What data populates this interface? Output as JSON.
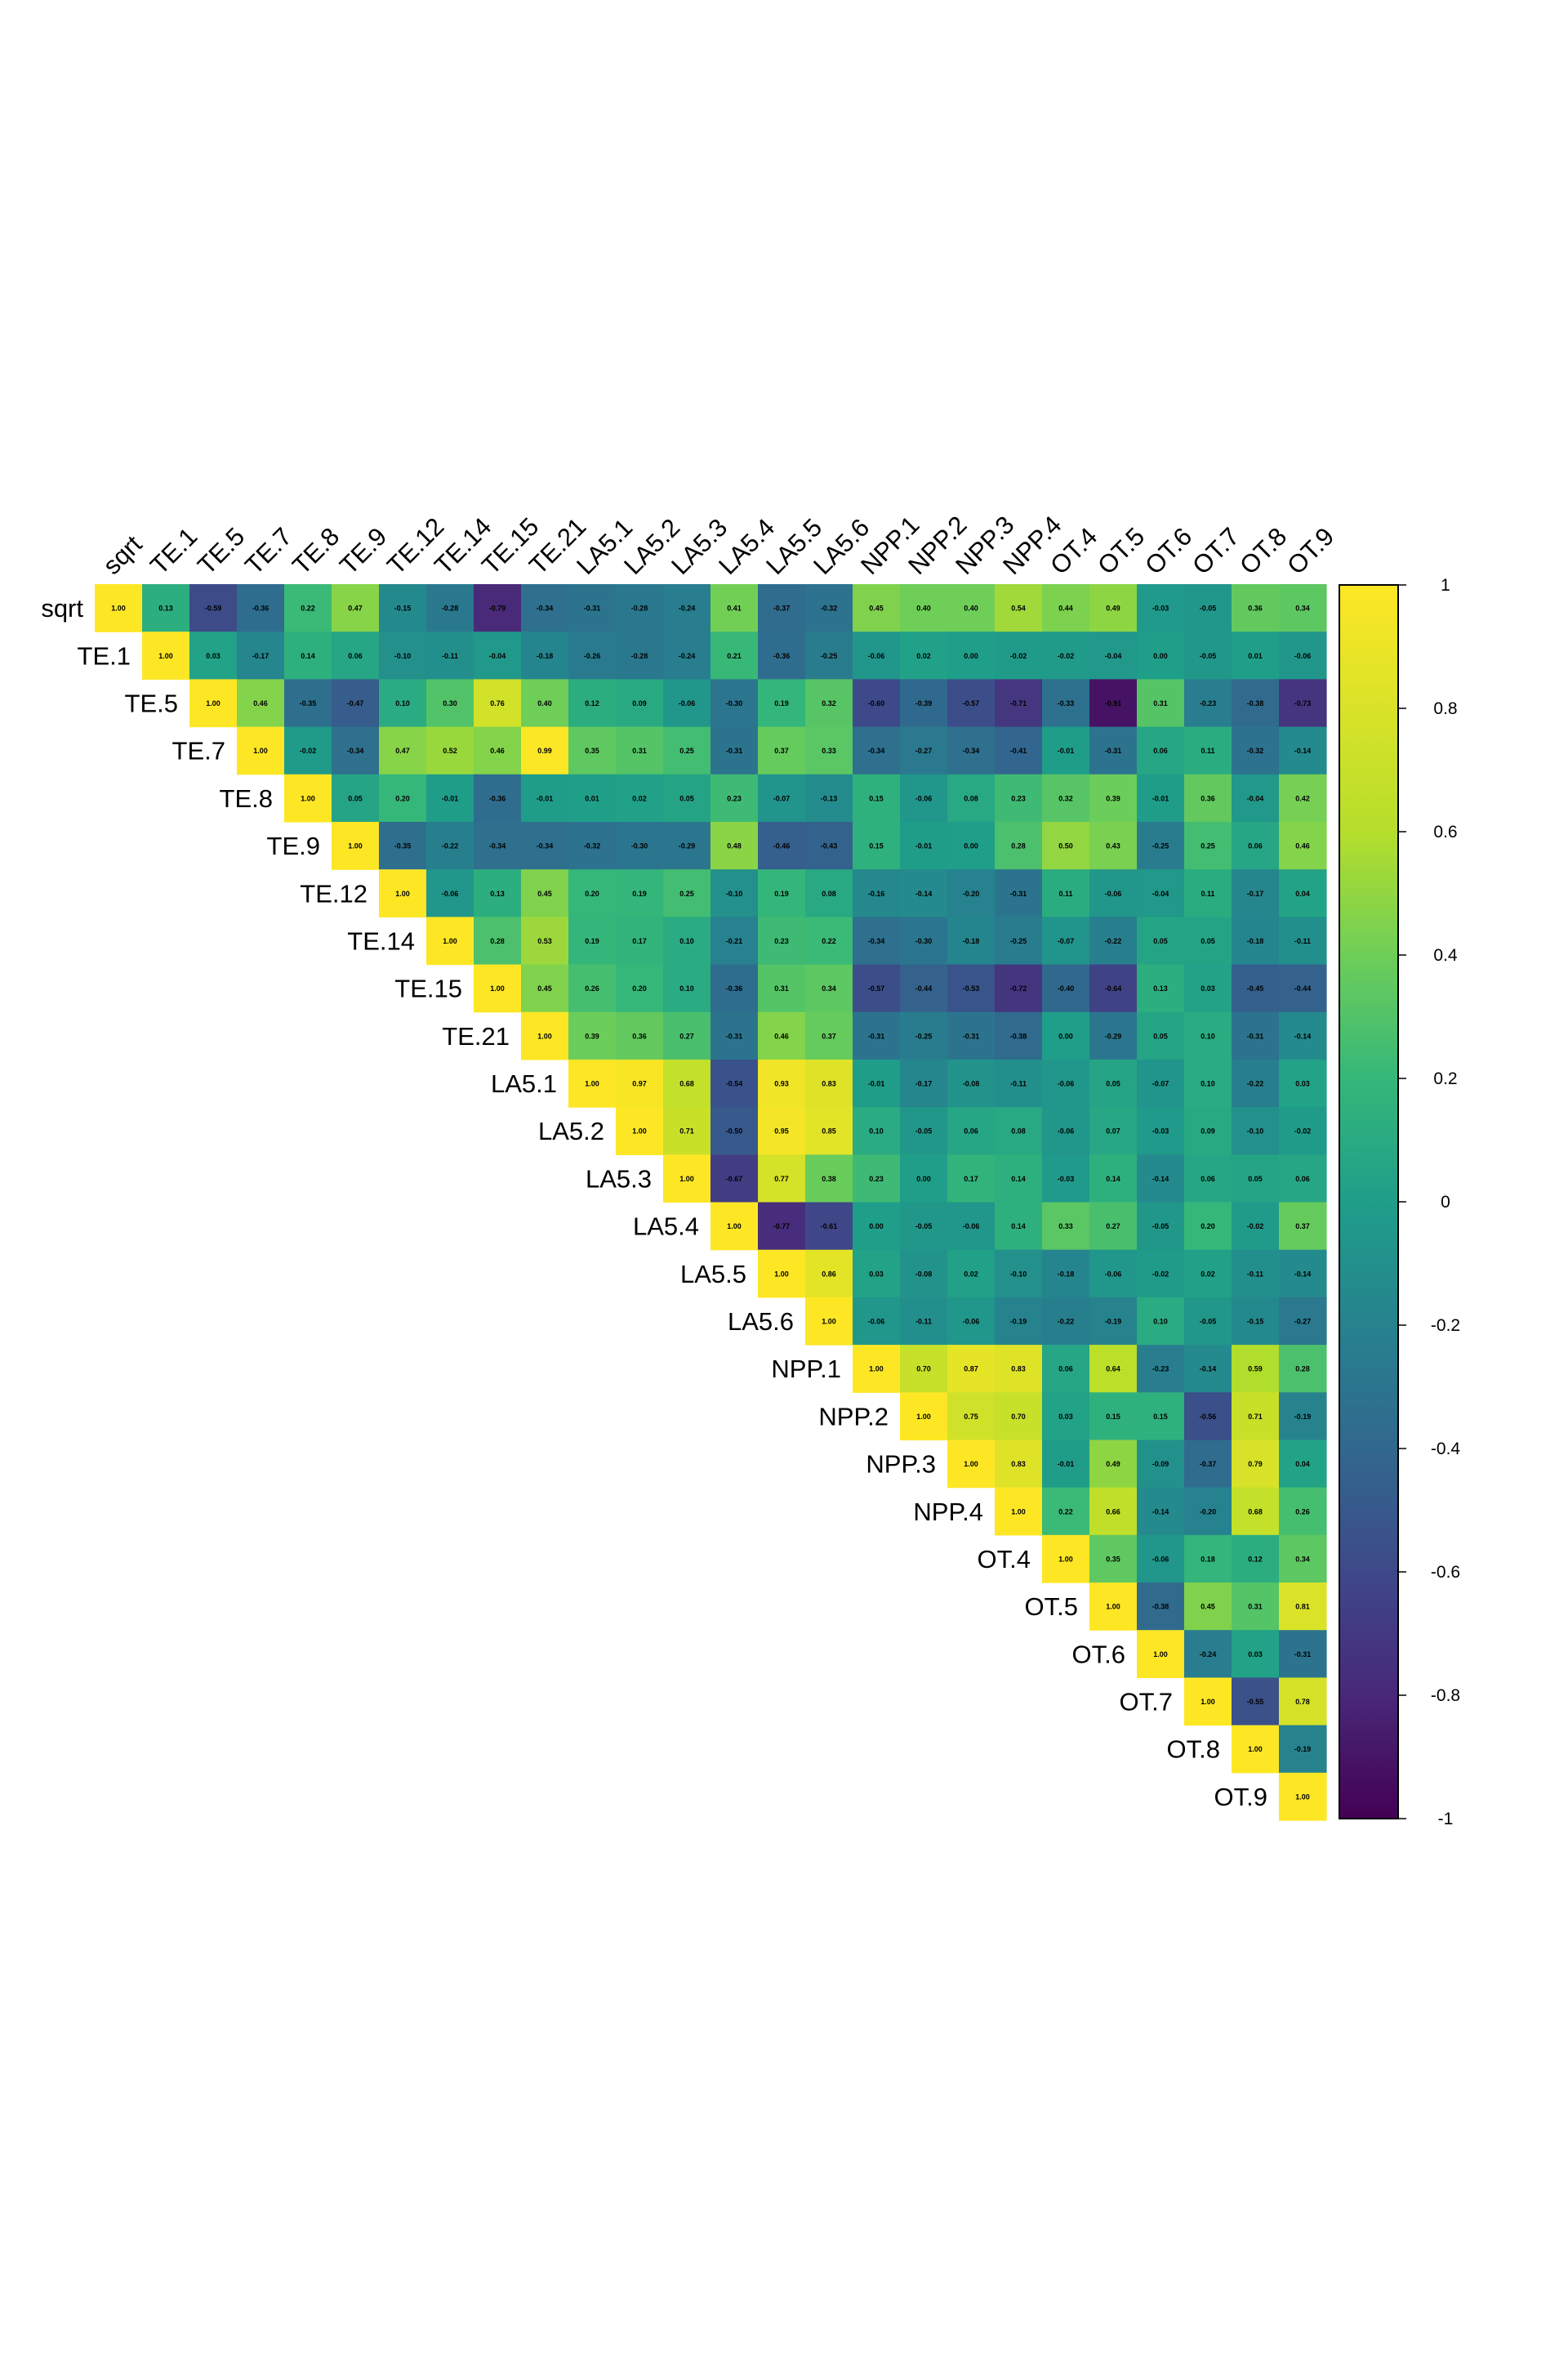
{
  "chart_data": {
    "type": "heatmap",
    "subtype": "upper-triangular correlation matrix",
    "title": "",
    "variables": [
      "sqrt",
      "TE.1",
      "TE.5",
      "TE.7",
      "TE.8",
      "TE.9",
      "TE.12",
      "TE.14",
      "TE.15",
      "TE.21",
      "LA5.1",
      "LA5.2",
      "LA5.3",
      "LA5.4",
      "LA5.5",
      "LA5.6",
      "NPP.1",
      "NPP.2",
      "NPP.3",
      "NPP.4",
      "OT.4",
      "OT.5",
      "OT.6",
      "OT.7",
      "OT.8",
      "OT.9"
    ],
    "value_range": [
      -1,
      1
    ],
    "colormap": "viridis",
    "colorbar": {
      "position": "right",
      "ticks": [
        1,
        0.8,
        0.6,
        0.4,
        0.2,
        0,
        -0.2,
        -0.4,
        -0.6,
        -0.8,
        -1
      ],
      "tick_labels": [
        "1",
        "0.8",
        "0.6",
        "0.4",
        "0.2",
        "0",
        "-0.2",
        "-0.4",
        "-0.6",
        "-0.8",
        "-1"
      ]
    },
    "values": [
      [
        1.0,
        0.13,
        -0.59,
        -0.36,
        0.22,
        0.47,
        -0.15,
        -0.28,
        -0.79,
        -0.34,
        -0.31,
        -0.28,
        -0.24,
        0.41,
        -0.37,
        -0.32,
        0.45,
        0.4,
        0.4,
        0.54,
        0.44,
        0.49,
        -0.03,
        -0.05,
        0.36,
        0.34
      ],
      [
        1.0,
        0.03,
        -0.17,
        0.14,
        0.06,
        -0.1,
        -0.11,
        -0.04,
        -0.18,
        -0.26,
        -0.28,
        -0.24,
        0.21,
        -0.36,
        -0.25,
        -0.06,
        0.02,
        0.0,
        -0.02,
        -0.02,
        -0.04,
        0.0,
        -0.05,
        0.01,
        -0.06
      ],
      [
        1.0,
        0.46,
        -0.35,
        -0.47,
        0.1,
        0.3,
        0.76,
        0.4,
        0.12,
        0.09,
        -0.06,
        -0.3,
        0.19,
        0.32,
        -0.6,
        -0.39,
        -0.57,
        -0.71,
        -0.33,
        -0.91,
        0.31,
        -0.23,
        -0.38,
        -0.73
      ],
      [
        1.0,
        -0.02,
        -0.34,
        0.47,
        0.52,
        0.46,
        0.99,
        0.35,
        0.31,
        0.25,
        -0.31,
        0.37,
        0.33,
        -0.34,
        -0.27,
        -0.34,
        -0.41,
        -0.01,
        -0.31,
        0.06,
        0.11,
        -0.32,
        -0.14
      ],
      [
        1.0,
        0.05,
        0.2,
        -0.01,
        -0.36,
        -0.01,
        0.01,
        0.02,
        0.05,
        0.23,
        -0.07,
        -0.13,
        0.15,
        -0.06,
        0.08,
        0.23,
        0.32,
        0.39,
        -0.01,
        0.36,
        -0.04,
        0.42
      ],
      [
        1.0,
        -0.35,
        -0.22,
        -0.34,
        -0.34,
        -0.32,
        -0.3,
        -0.29,
        0.48,
        -0.46,
        -0.43,
        0.15,
        -0.01,
        0.0,
        0.28,
        0.5,
        0.43,
        -0.25,
        0.25,
        0.06,
        0.46
      ],
      [
        1.0,
        -0.06,
        0.13,
        0.45,
        0.2,
        0.19,
        0.25,
        -0.1,
        0.19,
        0.08,
        -0.16,
        -0.14,
        -0.2,
        -0.31,
        0.11,
        -0.06,
        -0.04,
        0.11,
        -0.17,
        0.04
      ],
      [
        1.0,
        0.28,
        0.53,
        0.19,
        0.17,
        0.1,
        -0.21,
        0.23,
        0.22,
        -0.34,
        -0.3,
        -0.18,
        -0.25,
        -0.07,
        -0.22,
        0.05,
        0.05,
        -0.18,
        -0.11
      ],
      [
        1.0,
        0.45,
        0.26,
        0.2,
        0.1,
        -0.36,
        0.31,
        0.34,
        -0.57,
        -0.44,
        -0.53,
        -0.72,
        -0.4,
        -0.64,
        0.13,
        0.03,
        -0.45,
        -0.44
      ],
      [
        1.0,
        0.39,
        0.36,
        0.27,
        -0.31,
        0.46,
        0.37,
        -0.31,
        -0.25,
        -0.31,
        -0.38,
        0.0,
        -0.29,
        0.05,
        0.1,
        -0.31,
        -0.14
      ],
      [
        1.0,
        0.97,
        0.68,
        -0.54,
        0.93,
        0.83,
        -0.01,
        -0.17,
        -0.08,
        -0.11,
        -0.06,
        0.05,
        -0.07,
        0.1,
        -0.22,
        0.03
      ],
      [
        1.0,
        0.71,
        -0.5,
        0.95,
        0.85,
        0.1,
        -0.05,
        0.06,
        0.08,
        -0.06,
        0.07,
        -0.03,
        0.09,
        -0.1,
        -0.02
      ],
      [
        1.0,
        -0.67,
        0.77,
        0.38,
        0.23,
        0.0,
        0.17,
        0.14,
        -0.03,
        0.14,
        -0.14,
        0.06,
        0.05,
        0.06
      ],
      [
        1.0,
        -0.77,
        -0.61,
        0.0,
        -0.05,
        -0.06,
        0.14,
        0.33,
        0.27,
        -0.05,
        0.2,
        -0.02,
        0.37
      ],
      [
        1.0,
        0.86,
        0.03,
        -0.08,
        0.02,
        -0.1,
        -0.18,
        -0.06,
        -0.02,
        0.02,
        -0.11,
        -0.14
      ],
      [
        1.0,
        -0.06,
        -0.11,
        -0.06,
        -0.19,
        -0.22,
        -0.19,
        0.1,
        -0.05,
        -0.15,
        -0.27
      ],
      [
        1.0,
        0.7,
        0.87,
        0.83,
        0.06,
        0.64,
        -0.23,
        -0.14,
        0.59,
        0.28
      ],
      [
        1.0,
        0.75,
        0.7,
        0.03,
        0.15,
        0.15,
        -0.56,
        0.71,
        -0.19
      ],
      [
        1.0,
        0.83,
        -0.01,
        0.49,
        -0.09,
        -0.37,
        0.79,
        0.04
      ],
      [
        1.0,
        0.22,
        0.66,
        -0.14,
        -0.2,
        0.68,
        0.26
      ],
      [
        1.0,
        0.35,
        -0.06,
        0.18,
        0.12,
        0.34
      ],
      [
        1.0,
        -0.38,
        0.45,
        0.31,
        0.81
      ],
      [
        1.0,
        -0.24,
        0.03,
        -0.31
      ],
      [
        1.0,
        -0.55,
        0.78
      ],
      [
        1.0,
        -0.19
      ],
      [
        1.0
      ]
    ]
  }
}
